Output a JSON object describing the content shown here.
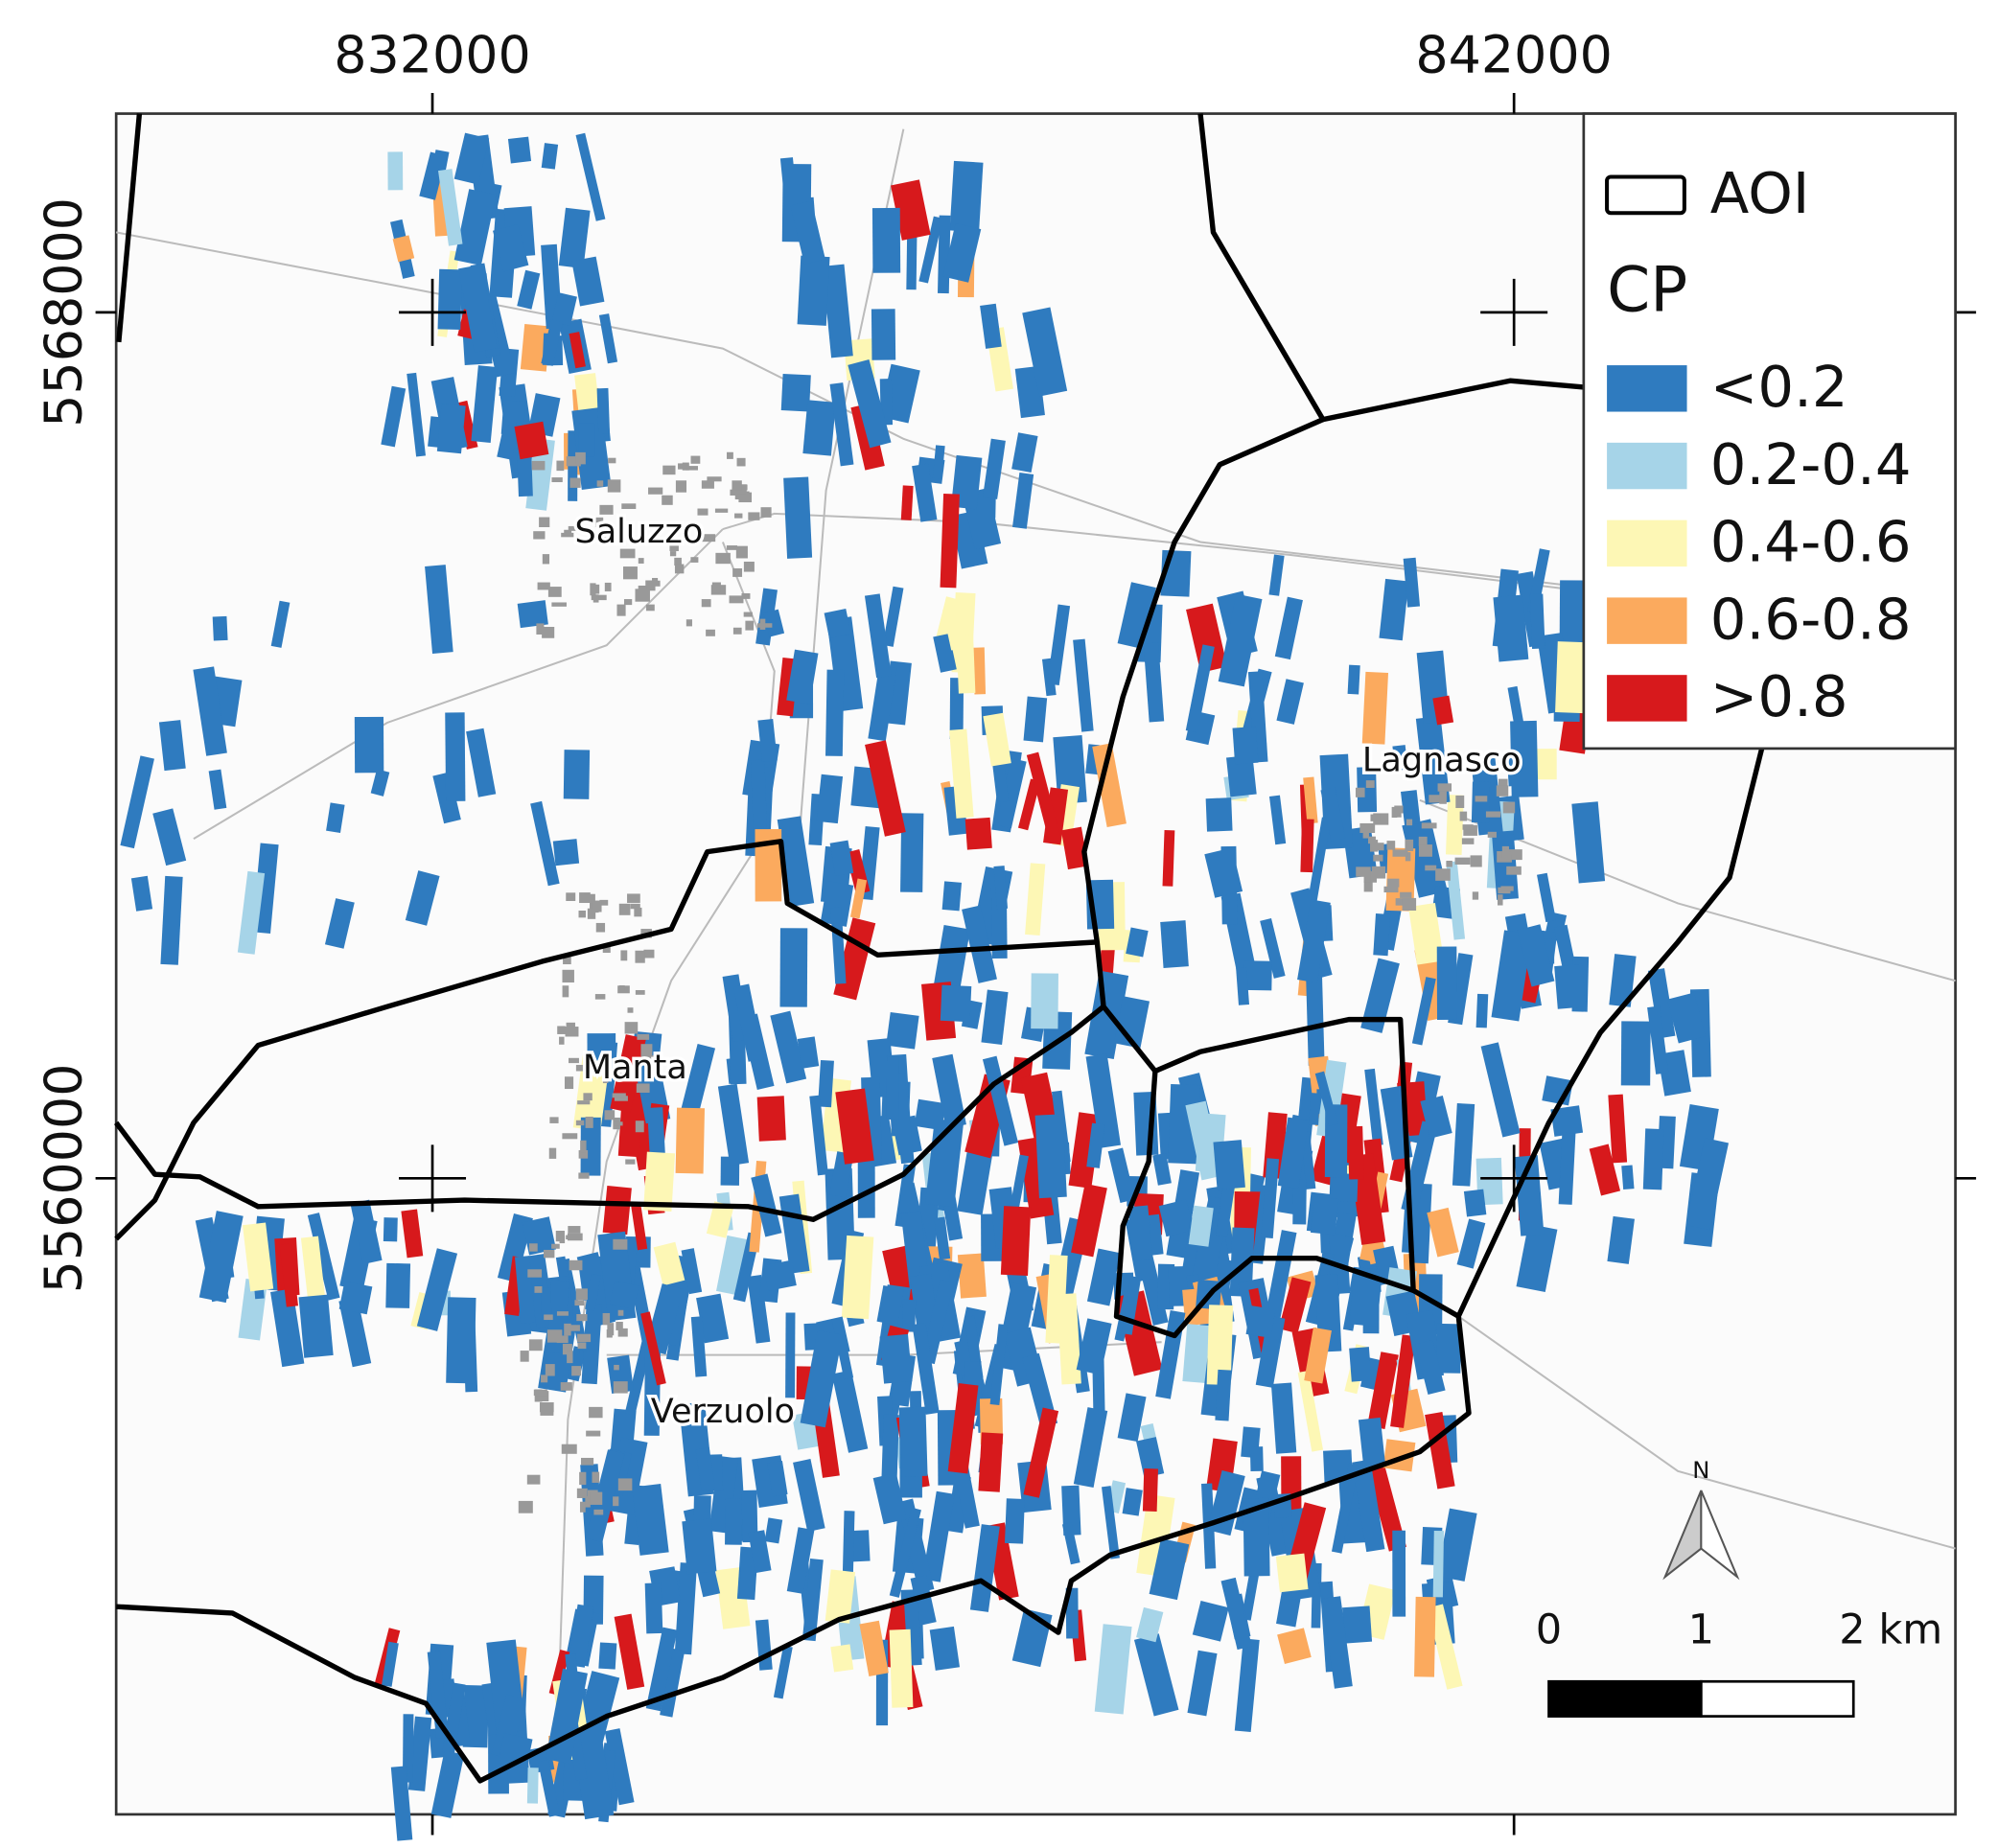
{
  "map": {
    "xlim": [
      829076,
      846081
    ],
    "ylim": [
      5554124,
      5569836
    ],
    "xticks": [
      832000,
      842000
    ],
    "yticks": [
      5568000,
      5560000
    ],
    "places": [
      "Saluzzo",
      "Manta",
      "Lagnasco",
      "Verzuolo"
    ],
    "legend": {
      "aoi": "AOI",
      "title": "CP",
      "classes": [
        {
          "label": "<0.2",
          "color": "#2f7bbf"
        },
        {
          "label": "0.2-0.4",
          "color": "#a6d4e8"
        },
        {
          "label": "0.4-0.6",
          "color": "#fdf7b5"
        },
        {
          "label": "0.6-0.8",
          "color": "#fbaa5e"
        },
        {
          "label": ">0.8",
          "color": "#d7191c"
        }
      ]
    },
    "scale_bar": [
      "0",
      "1",
      "2 km"
    ],
    "north": "N"
  }
}
